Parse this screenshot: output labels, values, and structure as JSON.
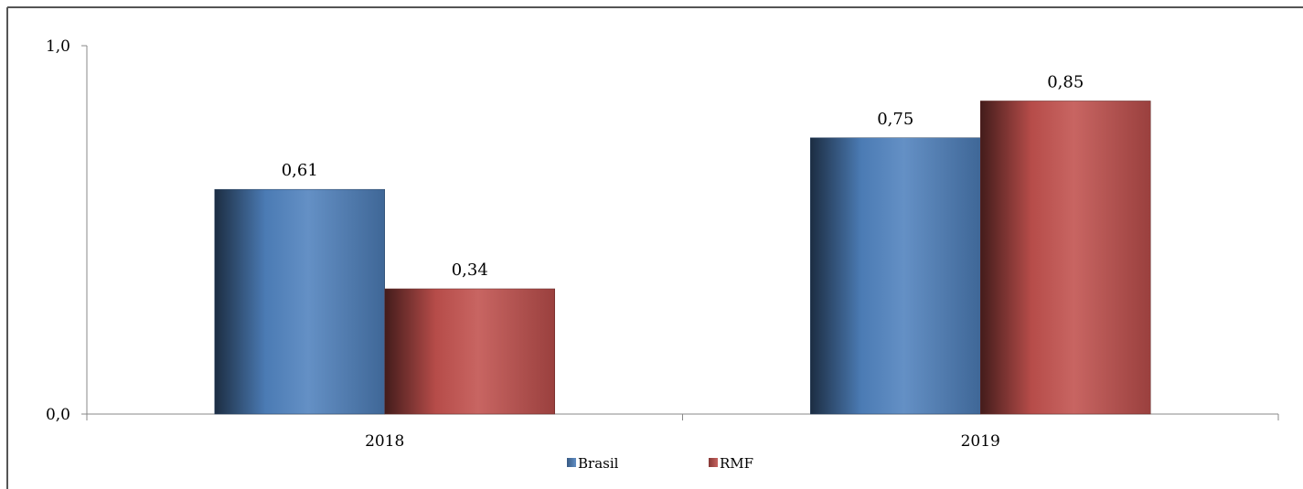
{
  "chart_data": {
    "type": "bar",
    "title": "",
    "xlabel": "",
    "ylabel": "",
    "categories": [
      "2018",
      "2019"
    ],
    "series": [
      {
        "name": "Brasil",
        "values": [
          0.61,
          0.75
        ],
        "labels": [
          "0,61",
          "0,75"
        ],
        "color": "#4F81BD"
      },
      {
        "name": "RMF",
        "values": [
          0.34,
          0.85
        ],
        "labels": [
          "0,34",
          "0,85"
        ],
        "color": "#C0504D"
      }
    ],
    "ylim": [
      0,
      1.0
    ],
    "yticks": [
      {
        "value": 0.0,
        "label": "0,0"
      },
      {
        "value": 1.0,
        "label": "1,0"
      }
    ],
    "grid": false,
    "legend": "bottom-center"
  }
}
